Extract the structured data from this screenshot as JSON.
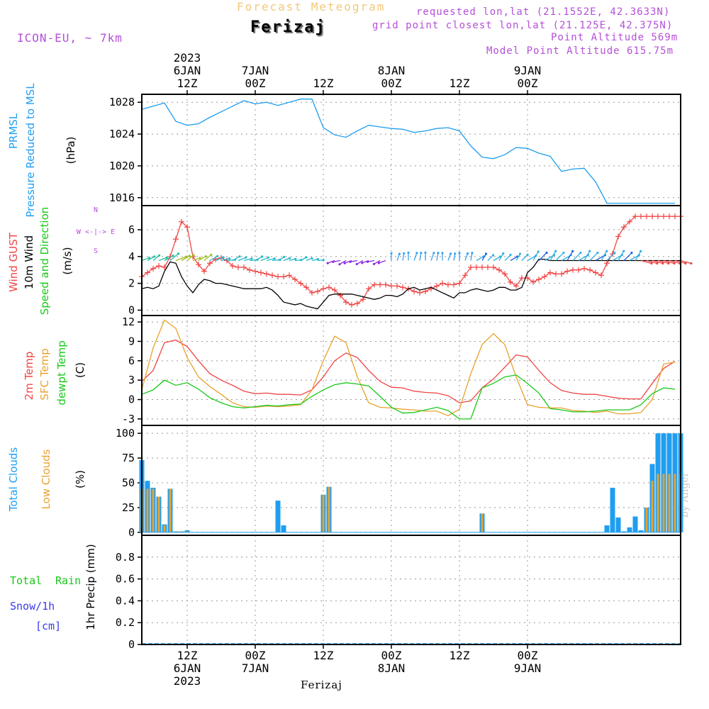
{
  "header": {
    "title": "Forecast Meteogram",
    "station": "Ferizaj",
    "model": "ICON-EU, ~ 7km",
    "requested": "requested lon,lat (21.1552E, 42.3633N)",
    "grid_point": "grid point closest lon,lat (21.125E, 42.375N)",
    "point_altitude": "Point Altitude 569m",
    "model_altitude": "Model Point Altitude 615.75m"
  },
  "footer": {
    "station": "Ferizaj",
    "credit": "by Angel"
  },
  "colors": {
    "pressure": "#1f9ef0",
    "gust": "#f04545",
    "wind": "#000000",
    "temp": "#f04545",
    "sfc_temp": "#e8a22e",
    "dewpt": "#18c818",
    "total_clouds": "#1f9ef0",
    "low_clouds": "#e8a22e",
    "label_purple": "#b44fd8",
    "label_blue": "#3a3af0",
    "label_green": "#18c818"
  },
  "chart_data": [
    {
      "type": "line",
      "panel": "pressure",
      "ylabel": [
        "PRMSL",
        "Pressure Reduced to MSL",
        "(hPa)"
      ],
      "ylim": [
        1015,
        1029
      ],
      "yticks": [
        1016,
        1020,
        1024,
        1028
      ],
      "x_hours": [
        0,
        2,
        4,
        6,
        8,
        10,
        12,
        14,
        16,
        18,
        20,
        22,
        24,
        26,
        28,
        30,
        32,
        34,
        36,
        38,
        40,
        42,
        44,
        46,
        48,
        50,
        52,
        54,
        56,
        58,
        60,
        62,
        64,
        66,
        68,
        70,
        72,
        74,
        76,
        78,
        80,
        82,
        84,
        86,
        88,
        90,
        92,
        94
      ],
      "series": [
        {
          "name": "PRMSL",
          "values": [
            1027.1,
            1027.5,
            1027.9,
            1025.6,
            1025.1,
            1025.3,
            1026.1,
            1026.8,
            1027.5,
            1028.2,
            1027.8,
            1028.0,
            1027.6,
            1028.0,
            1028.4,
            1028.4,
            1024.8,
            1023.9,
            1023.6,
            1024.4,
            1025.1,
            1024.9,
            1024.7,
            1024.6,
            1024.2,
            1024.4,
            1024.7,
            1024.8,
            1024.4,
            1022.5,
            1021.1,
            1020.9,
            1021.4,
            1022.3,
            1022.2,
            1021.6,
            1021.2,
            1019.3,
            1019.6,
            1019.7,
            1018.0,
            1015.3,
            1015.3,
            1015.3,
            1015.3,
            1015.3,
            1015.3,
            1015.3
          ]
        }
      ]
    },
    {
      "type": "line",
      "panel": "wind",
      "ylabel": [
        "Wind GUST",
        "10m Wind",
        "Speed and Direction",
        "(m/s)"
      ],
      "compass": [
        "N",
        "W <-|-> E",
        "S"
      ],
      "ylim": [
        -0.4,
        7.8
      ],
      "yticks": [
        0,
        2,
        4,
        6
      ],
      "x_hours": [
        0,
        1,
        2,
        3,
        4,
        5,
        6,
        7,
        8,
        9,
        10,
        11,
        12,
        13,
        14,
        15,
        16,
        17,
        18,
        19,
        20,
        21,
        22,
        23,
        24,
        25,
        26,
        27,
        28,
        29,
        30,
        31,
        32,
        33,
        34,
        35,
        36,
        37,
        38,
        39,
        40,
        41,
        42,
        43,
        44,
        45,
        46,
        47,
        48,
        49,
        50,
        51,
        52,
        53,
        54,
        55,
        56,
        57,
        58,
        59,
        60,
        61,
        62,
        63,
        64,
        65,
        66,
        67,
        68,
        69,
        70,
        71,
        72,
        73,
        74,
        75,
        76,
        77,
        78,
        79,
        80,
        81,
        82,
        83,
        84,
        85,
        86,
        87,
        88,
        89,
        90,
        91,
        92,
        93,
        94,
        95
      ],
      "series": [
        {
          "name": "Wind GUST",
          "values": [
            2.5,
            2.8,
            3.1,
            3.3,
            3.2,
            4.0,
            5.3,
            6.6,
            6.2,
            4.0,
            3.4,
            2.9,
            3.5,
            3.8,
            3.9,
            3.7,
            3.3,
            3.2,
            3.2,
            3.0,
            2.9,
            2.8,
            2.7,
            2.6,
            2.5,
            2.5,
            2.6,
            2.3,
            2.0,
            1.7,
            1.3,
            1.4,
            1.6,
            1.7,
            1.5,
            1.1,
            0.6,
            0.4,
            0.5,
            0.8,
            1.6,
            1.9,
            1.9,
            1.9,
            1.8,
            1.8,
            1.7,
            1.6,
            1.4,
            1.3,
            1.4,
            1.6,
            1.8,
            2.0,
            1.9,
            1.9,
            2.0,
            2.6,
            3.2,
            3.2,
            3.2,
            3.2,
            3.2,
            3.0,
            2.7,
            2.1,
            1.8,
            2.4,
            2.4,
            2.1,
            2.3,
            2.5,
            2.8,
            2.7,
            2.7,
            2.9,
            3.0,
            3.0,
            3.1,
            3.0,
            2.8,
            2.6,
            3.5,
            4.2,
            5.5,
            6.2,
            6.6,
            7.0,
            7.0,
            7.0,
            7.0,
            7.0,
            7.0,
            7.0,
            7.0,
            7.0
          ]
        },
        {
          "name": "10m Wind",
          "values": [
            1.6,
            1.7,
            1.6,
            1.8,
            2.9,
            3.6,
            3.5,
            2.5,
            1.8,
            1.3,
            1.9,
            2.3,
            2.2,
            2.0,
            2.0,
            1.9,
            1.8,
            1.7,
            1.6,
            1.6,
            1.6,
            1.6,
            1.7,
            1.5,
            1.1,
            0.6,
            0.5,
            0.4,
            0.5,
            0.3,
            0.2,
            0.1,
            0.6,
            1.1,
            1.2,
            1.2,
            1.2,
            1.2,
            1.1,
            1.0,
            0.9,
            0.8,
            0.9,
            1.1,
            1.1,
            1.0,
            1.2,
            1.6,
            1.7,
            1.5,
            1.6,
            1.7,
            1.5,
            1.3,
            1.1,
            0.9,
            1.3,
            1.3,
            1.5,
            1.6,
            1.5,
            1.4,
            1.5,
            1.7,
            1.7,
            1.5,
            1.5,
            1.7,
            2.8,
            3.2,
            3.8,
            3.8,
            3.7,
            3.7,
            3.7,
            3.7,
            3.7,
            3.7,
            3.7,
            3.7,
            3.7,
            3.7,
            3.7,
            3.7,
            3.7,
            3.7,
            3.7,
            3.7,
            3.7,
            3.7,
            3.7,
            3.7,
            3.7,
            3.7,
            3.7,
            3.7
          ]
        }
      ]
    },
    {
      "type": "line",
      "panel": "temperature",
      "ylabel": [
        "2m Temp",
        "SFC Temp",
        "dewpt Temp",
        "(C)"
      ],
      "ylim": [
        -4,
        13
      ],
      "yticks": [
        -3,
        0,
        3,
        6,
        9,
        12
      ],
      "x_hours": [
        0,
        2,
        4,
        6,
        8,
        10,
        12,
        14,
        16,
        18,
        20,
        22,
        24,
        26,
        28,
        30,
        32,
        34,
        36,
        38,
        40,
        42,
        44,
        46,
        48,
        50,
        52,
        54,
        56,
        58,
        60,
        62,
        64,
        66,
        68,
        70,
        72,
        74,
        76,
        78,
        80,
        82,
        84,
        86,
        88,
        90,
        92,
        94
      ],
      "series": [
        {
          "name": "2m Temp",
          "values": [
            2.8,
            4.5,
            8.8,
            9.2,
            8.2,
            6.0,
            4.0,
            3.0,
            2.2,
            1.3,
            0.9,
            1.0,
            0.8,
            0.8,
            0.7,
            1.5,
            3.5,
            6.0,
            7.2,
            6.5,
            4.5,
            2.8,
            1.9,
            1.8,
            1.3,
            1.1,
            1.0,
            0.6,
            -0.5,
            -0.2,
            1.8,
            3.2,
            5.0,
            6.9,
            6.6,
            4.5,
            2.6,
            1.4,
            1.0,
            0.8,
            0.8,
            0.5,
            0.2,
            0.1,
            0.1,
            2.5,
            4.8,
            5.9
          ]
        },
        {
          "name": "SFC Temp",
          "values": [
            1.5,
            8.0,
            12.3,
            11.0,
            6.5,
            3.5,
            2.0,
            0.8,
            -0.5,
            -1.1,
            -1.2,
            -1.0,
            -1.1,
            -1.0,
            -0.8,
            1.5,
            6.0,
            9.8,
            8.8,
            3.5,
            -0.5,
            -1.2,
            -1.3,
            -1.5,
            -1.6,
            -1.8,
            -1.8,
            -2.5,
            -1.5,
            4.0,
            8.5,
            10.2,
            8.5,
            3.5,
            -0.8,
            -1.2,
            -1.3,
            -1.3,
            -1.7,
            -1.8,
            -2.0,
            -1.8,
            -2.2,
            -2.2,
            -2.0,
            0.0,
            5.5,
            5.8
          ]
        },
        {
          "name": "dewpt Temp",
          "values": [
            0.8,
            1.5,
            3.0,
            2.2,
            2.6,
            1.6,
            0.3,
            -0.5,
            -1.1,
            -1.3,
            -1.1,
            -0.9,
            -1.0,
            -0.8,
            -0.7,
            0.5,
            1.5,
            2.3,
            2.6,
            2.4,
            2.1,
            0.5,
            -1.2,
            -2.1,
            -2.0,
            -1.6,
            -1.2,
            -1.7,
            -3.0,
            -3.0,
            1.8,
            2.5,
            3.5,
            3.8,
            2.5,
            1.0,
            -1.4,
            -1.6,
            -1.9,
            -1.9,
            -1.8,
            -1.6,
            -1.6,
            -1.6,
            -0.8,
            0.9,
            1.8,
            1.6
          ]
        }
      ]
    },
    {
      "type": "bar",
      "panel": "clouds",
      "ylabel": [
        "Total Clouds",
        "Low Clouds",
        "(%)"
      ],
      "ylim": [
        -3,
        108
      ],
      "yticks": [
        0,
        25,
        50,
        75,
        100
      ],
      "x_hours": [
        0,
        1,
        2,
        3,
        4,
        5,
        6,
        7,
        8,
        9,
        10,
        11,
        12,
        13,
        14,
        15,
        16,
        17,
        18,
        19,
        20,
        21,
        22,
        23,
        24,
        25,
        26,
        27,
        28,
        29,
        30,
        31,
        32,
        33,
        34,
        35,
        36,
        37,
        38,
        39,
        40,
        41,
        42,
        43,
        44,
        45,
        46,
        47,
        48,
        49,
        50,
        51,
        52,
        53,
        54,
        55,
        56,
        57,
        58,
        59,
        60,
        61,
        62,
        63,
        64,
        65,
        66,
        67,
        68,
        69,
        70,
        71,
        72,
        73,
        74,
        75,
        76,
        77,
        78,
        79,
        80,
        81,
        82,
        83,
        84,
        85,
        86,
        87,
        88,
        89,
        90,
        91,
        92,
        93,
        94,
        95
      ],
      "series": [
        {
          "name": "Total Clouds",
          "values": [
            73,
            52,
            45,
            36,
            8,
            44,
            1,
            1,
            2,
            0,
            0,
            0,
            0,
            0,
            0,
            0,
            0,
            0,
            0,
            0,
            0,
            0,
            0,
            0,
            32,
            7,
            0,
            0,
            0,
            0,
            0,
            0,
            38,
            46,
            0,
            0,
            0,
            0,
            0,
            0,
            0,
            0,
            0,
            0,
            0,
            0,
            0,
            0,
            0,
            0,
            0,
            0,
            0,
            0,
            0,
            0,
            0,
            0,
            0,
            0,
            19,
            0,
            0,
            0,
            0,
            0,
            0,
            0,
            0,
            0,
            0,
            0,
            0,
            0,
            0,
            0,
            0,
            0,
            0,
            0,
            0,
            0,
            7,
            45,
            15,
            1,
            5,
            16,
            2,
            25,
            69,
            100,
            100,
            100,
            100,
            100
          ]
        },
        {
          "name": "Low Clouds",
          "values": [
            44,
            44,
            44,
            36,
            7,
            44,
            1,
            1,
            1,
            0,
            0,
            0,
            0,
            0,
            0,
            0,
            0,
            0,
            0,
            0,
            0,
            0,
            0,
            0,
            0,
            0,
            0,
            0,
            0,
            0,
            0,
            0,
            38,
            46,
            0,
            0,
            0,
            0,
            0,
            0,
            0,
            0,
            0,
            0,
            0,
            0,
            0,
            0,
            0,
            0,
            0,
            0,
            0,
            0,
            0,
            0,
            0,
            0,
            0,
            0,
            19,
            0,
            0,
            0,
            0,
            0,
            0,
            0,
            0,
            0,
            0,
            0,
            0,
            0,
            0,
            0,
            0,
            0,
            0,
            0,
            0,
            0,
            0,
            0,
            0,
            0,
            0,
            0,
            0,
            25,
            52,
            59,
            59,
            59,
            59,
            59
          ]
        }
      ]
    },
    {
      "type": "line",
      "panel": "precipitation",
      "ylabel": [
        "1hr Precip (mm)"
      ],
      "legend": [
        "Total",
        "Rain",
        "Snow/1h",
        "[cm]"
      ],
      "ylim": [
        0,
        1.0
      ],
      "yticks": [
        0,
        0.2,
        0.4,
        0.6,
        0.8
      ],
      "series": [
        {
          "name": "Total Rain",
          "values": [
            0,
            0,
            0,
            0,
            0,
            0,
            0,
            0,
            0,
            0,
            0,
            0,
            0,
            0,
            0,
            0,
            0,
            0,
            0,
            0,
            0,
            0,
            0,
            0,
            0,
            0,
            0,
            0,
            0,
            0,
            0,
            0,
            0,
            0,
            0,
            0,
            0,
            0,
            0,
            0,
            0,
            0,
            0,
            0,
            0,
            0,
            0,
            0
          ]
        }
      ]
    }
  ],
  "time_axis": {
    "top": [
      {
        "h": 8,
        "lines": [
          "2023",
          "6JAN",
          "12Z"
        ]
      },
      {
        "h": 20,
        "lines": [
          "7JAN",
          "00Z"
        ]
      },
      {
        "h": 32,
        "lines": [
          "12Z"
        ]
      },
      {
        "h": 44,
        "lines": [
          "8JAN",
          "00Z"
        ]
      },
      {
        "h": 56,
        "lines": [
          "12Z"
        ]
      },
      {
        "h": 68,
        "lines": [
          "9JAN",
          "00Z"
        ]
      }
    ],
    "bottom": [
      {
        "h": 8,
        "lines": [
          "12Z",
          "6JAN",
          "2023"
        ]
      },
      {
        "h": 20,
        "lines": [
          "00Z",
          "7JAN"
        ]
      },
      {
        "h": 32,
        "lines": [
          "12Z"
        ]
      },
      {
        "h": 44,
        "lines": [
          "00Z",
          "8JAN"
        ]
      },
      {
        "h": 56,
        "lines": [
          "12Z"
        ]
      },
      {
        "h": 68,
        "lines": [
          "00Z",
          "9JAN"
        ]
      }
    ]
  }
}
